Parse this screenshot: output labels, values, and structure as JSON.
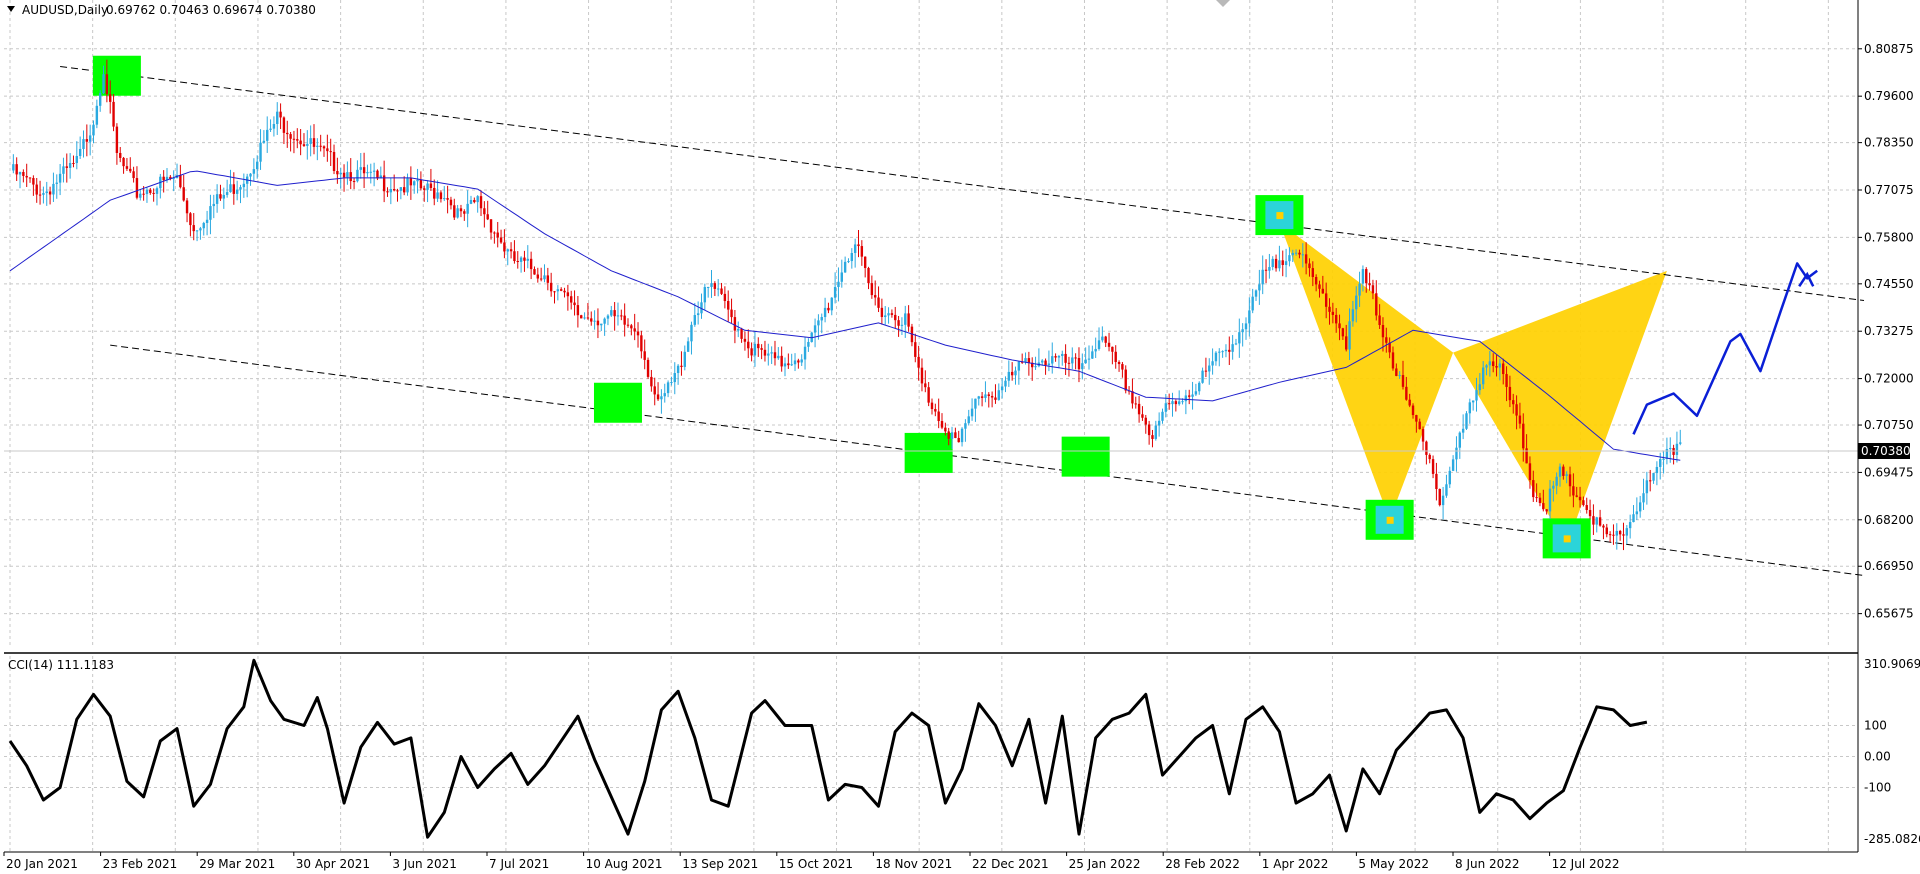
{
  "header": {
    "symbol": "AUDUSD,Daily",
    "ohlc": "0.69762 0.70463 0.69674 0.70380",
    "indicator": "CCI(14) 111.1183"
  },
  "colors": {
    "bull": "#2aa9e0",
    "bear": "#e00000",
    "ma": "#1f1fcc",
    "pattern": "#ffd000",
    "highlight": "#00ff00",
    "current_price_bg": "#000000",
    "projection": "#0a1fd6",
    "channel": "#000000",
    "cci": "#000000"
  },
  "chart_data": [
    {
      "type": "line",
      "subtype": "candlestick",
      "symbol": "AUDUSD",
      "timeframe": "Daily",
      "last_price": "0.70380",
      "ylim": [
        0.6475,
        0.8165
      ],
      "y_ticks": [
        "0.80875",
        "0.79600",
        "0.78350",
        "0.77075",
        "0.75800",
        "0.74550",
        "0.73275",
        "0.72000",
        "0.70750",
        "0.69475",
        "0.68200",
        "0.66950",
        "0.65675"
      ],
      "x_ticks": [
        "20 Jan 2021",
        "23 Feb 2021",
        "29 Mar 2021",
        "30 Apr 2021",
        "3 Jun 2021",
        "7 Jul 2021",
        "10 Aug 2021",
        "13 Sep 2021",
        "15 Oct 2021",
        "18 Nov 2021",
        "22 Dec 2021",
        "25 Jan 2022",
        "28 Feb 2022",
        "1 Apr 2022",
        "5 May 2022",
        "8 Jun 2022",
        "12 Jul 2022"
      ],
      "price_path": [
        [
          0,
          0.776
        ],
        [
          10,
          0.77
        ],
        [
          20,
          0.778
        ],
        [
          25,
          0.79
        ],
        [
          28,
          0.804
        ],
        [
          32,
          0.78
        ],
        [
          38,
          0.77
        ],
        [
          50,
          0.774
        ],
        [
          55,
          0.76
        ],
        [
          60,
          0.766
        ],
        [
          70,
          0.774
        ],
        [
          80,
          0.79
        ],
        [
          85,
          0.786
        ],
        [
          100,
          0.776
        ],
        [
          115,
          0.772
        ],
        [
          130,
          0.77
        ],
        [
          135,
          0.763
        ],
        [
          140,
          0.768
        ],
        [
          150,
          0.752
        ],
        [
          160,
          0.748
        ],
        [
          170,
          0.737
        ],
        [
          180,
          0.736
        ],
        [
          188,
          0.733
        ],
        [
          194,
          0.712
        ],
        [
          200,
          0.722
        ],
        [
          205,
          0.738
        ],
        [
          210,
          0.745
        ],
        [
          215,
          0.738
        ],
        [
          222,
          0.728
        ],
        [
          230,
          0.724
        ],
        [
          238,
          0.727
        ],
        [
          245,
          0.74
        ],
        [
          250,
          0.752
        ],
        [
          253,
          0.756
        ],
        [
          258,
          0.742
        ],
        [
          262,
          0.738
        ],
        [
          268,
          0.736
        ],
        [
          273,
          0.718
        ],
        [
          278,
          0.71
        ],
        [
          284,
          0.702
        ],
        [
          290,
          0.716
        ],
        [
          295,
          0.716
        ],
        [
          305,
          0.725
        ],
        [
          312,
          0.725
        ],
        [
          320,
          0.723
        ],
        [
          326,
          0.731
        ],
        [
          332,
          0.722
        ],
        [
          340,
          0.708
        ],
        [
          342,
          0.703
        ],
        [
          346,
          0.712
        ],
        [
          355,
          0.718
        ],
        [
          362,
          0.726
        ],
        [
          370,
          0.735
        ],
        [
          375,
          0.747
        ],
        [
          380,
          0.752
        ],
        [
          384,
          0.756
        ],
        [
          390,
          0.746
        ],
        [
          395,
          0.74
        ],
        [
          400,
          0.73
        ],
        [
          405,
          0.748
        ],
        [
          410,
          0.736
        ],
        [
          418,
          0.713
        ],
        [
          425,
          0.7
        ],
        [
          428,
          0.686
        ],
        [
          432,
          0.698
        ],
        [
          437,
          0.712
        ],
        [
          442,
          0.726
        ],
        [
          446,
          0.722
        ],
        [
          452,
          0.706
        ],
        [
          456,
          0.69
        ],
        [
          460,
          0.686
        ],
        [
          464,
          0.694
        ],
        [
          470,
          0.688
        ],
        [
          476,
          0.679
        ],
        [
          480,
          0.676
        ],
        [
          484,
          0.68
        ],
        [
          488,
          0.688
        ],
        [
          494,
          0.696
        ],
        [
          500,
          0.7038
        ]
      ],
      "moving_average": [
        [
          0,
          0.749
        ],
        [
          30,
          0.768
        ],
        [
          55,
          0.776
        ],
        [
          80,
          0.772
        ],
        [
          100,
          0.774
        ],
        [
          120,
          0.774
        ],
        [
          140,
          0.771
        ],
        [
          160,
          0.759
        ],
        [
          180,
          0.749
        ],
        [
          200,
          0.742
        ],
        [
          220,
          0.733
        ],
        [
          240,
          0.731
        ],
        [
          260,
          0.735
        ],
        [
          280,
          0.729
        ],
        [
          300,
          0.725
        ],
        [
          320,
          0.722
        ],
        [
          340,
          0.715
        ],
        [
          360,
          0.714
        ],
        [
          380,
          0.719
        ],
        [
          400,
          0.723
        ],
        [
          420,
          0.733
        ],
        [
          440,
          0.73
        ],
        [
          460,
          0.716
        ],
        [
          480,
          0.701
        ],
        [
          500,
          0.698
        ]
      ],
      "channel_lines": [
        {
          "from": [
            15,
            0.804
          ],
          "to": [
            555,
            0.741
          ]
        },
        {
          "from": [
            30,
            0.729
          ],
          "to": [
            555,
            0.667
          ]
        }
      ],
      "marked_points": [
        {
          "x": 32,
          "price": 0.8015,
          "type": "swing high"
        },
        {
          "x": 182,
          "price": 0.7135,
          "type": "swing low"
        },
        {
          "x": 275,
          "price": 0.7,
          "type": "swing low"
        },
        {
          "x": 322,
          "price": 0.699,
          "type": "swing low"
        },
        {
          "x": 380,
          "price": 0.764,
          "type": "pattern X"
        },
        {
          "x": 413,
          "price": 0.682,
          "type": "pattern A"
        },
        {
          "x": 466,
          "price": 0.677,
          "type": "pattern C"
        }
      ],
      "harmonic_pattern": {
        "points": [
          [
            380,
            0.762
          ],
          [
            413,
            0.682
          ],
          [
            432,
            0.727
          ],
          [
            466,
            0.675
          ],
          [
            496,
            0.749
          ]
        ]
      },
      "projection_path": [
        [
          486,
          0.705
        ],
        [
          490,
          0.713
        ],
        [
          498,
          0.716
        ],
        [
          505,
          0.71
        ],
        [
          515,
          0.73
        ],
        [
          518,
          0.732
        ],
        [
          524,
          0.722
        ],
        [
          530,
          0.738
        ],
        [
          535,
          0.751
        ],
        [
          538,
          0.747
        ],
        [
          541,
          0.749
        ]
      ]
    },
    {
      "type": "line",
      "name": "CCI(14)",
      "last_value": "111.1183",
      "ylim": [
        -285.0826,
        310.9069
      ],
      "y_ticks": [
        "310.9069",
        "100",
        "0.00",
        "-100",
        "-285.0826"
      ],
      "levels": [
        100,
        0,
        -100
      ],
      "values": [
        [
          0,
          50
        ],
        [
          5,
          -30
        ],
        [
          10,
          -140
        ],
        [
          15,
          -100
        ],
        [
          20,
          120
        ],
        [
          25,
          200
        ],
        [
          30,
          130
        ],
        [
          35,
          -80
        ],
        [
          40,
          -130
        ],
        [
          45,
          50
        ],
        [
          50,
          90
        ],
        [
          55,
          -160
        ],
        [
          60,
          -90
        ],
        [
          65,
          90
        ],
        [
          70,
          160
        ],
        [
          73,
          310
        ],
        [
          78,
          180
        ],
        [
          82,
          120
        ],
        [
          88,
          100
        ],
        [
          92,
          190
        ],
        [
          95,
          90
        ],
        [
          100,
          -150
        ],
        [
          105,
          30
        ],
        [
          110,
          110
        ],
        [
          115,
          40
        ],
        [
          120,
          60
        ],
        [
          125,
          -260
        ],
        [
          130,
          -180
        ],
        [
          135,
          0
        ],
        [
          140,
          -100
        ],
        [
          145,
          -40
        ],
        [
          150,
          10
        ],
        [
          155,
          -90
        ],
        [
          160,
          -30
        ],
        [
          170,
          130
        ],
        [
          175,
          -10
        ],
        [
          180,
          -130
        ],
        [
          185,
          -250
        ],
        [
          190,
          -80
        ],
        [
          195,
          150
        ],
        [
          200,
          210
        ],
        [
          205,
          60
        ],
        [
          210,
          -140
        ],
        [
          215,
          -160
        ],
        [
          222,
          140
        ],
        [
          226,
          180
        ],
        [
          232,
          100
        ],
        [
          240,
          100
        ],
        [
          245,
          -140
        ],
        [
          250,
          -90
        ],
        [
          255,
          -100
        ],
        [
          260,
          -160
        ],
        [
          265,
          80
        ],
        [
          270,
          140
        ],
        [
          275,
          100
        ],
        [
          280,
          -150
        ],
        [
          285,
          -40
        ],
        [
          290,
          170
        ],
        [
          295,
          100
        ],
        [
          300,
          -30
        ],
        [
          305,
          120
        ],
        [
          310,
          -150
        ],
        [
          315,
          130
        ],
        [
          320,
          -250
        ],
        [
          325,
          60
        ],
        [
          330,
          120
        ],
        [
          335,
          140
        ],
        [
          340,
          200
        ],
        [
          345,
          -60
        ],
        [
          350,
          0
        ],
        [
          355,
          60
        ],
        [
          360,
          100
        ],
        [
          365,
          -120
        ],
        [
          370,
          120
        ],
        [
          375,
          160
        ],
        [
          380,
          80
        ],
        [
          385,
          -150
        ],
        [
          390,
          -120
        ],
        [
          395,
          -60
        ],
        [
          400,
          -240
        ],
        [
          405,
          -40
        ],
        [
          410,
          -120
        ],
        [
          415,
          20
        ],
        [
          420,
          80
        ],
        [
          425,
          140
        ],
        [
          430,
          150
        ],
        [
          435,
          60
        ],
        [
          440,
          -180
        ],
        [
          445,
          -120
        ],
        [
          450,
          -140
        ],
        [
          455,
          -200
        ],
        [
          460,
          -150
        ],
        [
          465,
          -110
        ],
        [
          470,
          30
        ],
        [
          475,
          160
        ],
        [
          480,
          150
        ],
        [
          485,
          100
        ],
        [
          490,
          111
        ]
      ]
    }
  ]
}
